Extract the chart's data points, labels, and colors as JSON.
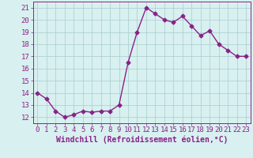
{
  "x": [
    0,
    1,
    2,
    3,
    4,
    5,
    6,
    7,
    8,
    9,
    10,
    11,
    12,
    13,
    14,
    15,
    16,
    17,
    18,
    19,
    20,
    21,
    22,
    23
  ],
  "y": [
    14,
    13.5,
    12.5,
    12,
    12.2,
    12.5,
    12.4,
    12.5,
    12.5,
    13,
    16.5,
    19,
    21,
    20.5,
    20,
    19.8,
    20.3,
    19.5,
    18.7,
    19.1,
    18,
    17.5,
    17,
    17
  ],
  "line_color": "#882288",
  "marker": "D",
  "marker_size": 2.5,
  "bg_color": "#d8f0f0",
  "grid_color": "#aacccc",
  "xlabel": "Windchill (Refroidissement éolien,°C)",
  "xlabel_color": "#882288",
  "xlabel_fontsize": 7,
  "xlim": [
    -0.5,
    23.5
  ],
  "ylim": [
    11.5,
    21.5
  ],
  "yticks": [
    12,
    13,
    14,
    15,
    16,
    17,
    18,
    19,
    20,
    21
  ],
  "xticks": [
    0,
    1,
    2,
    3,
    4,
    5,
    6,
    7,
    8,
    9,
    10,
    11,
    12,
    13,
    14,
    15,
    16,
    17,
    18,
    19,
    20,
    21,
    22,
    23
  ],
  "tick_fontsize": 6.5,
  "tick_color": "#882288",
  "spine_color": "#882288",
  "line_width": 1.0
}
